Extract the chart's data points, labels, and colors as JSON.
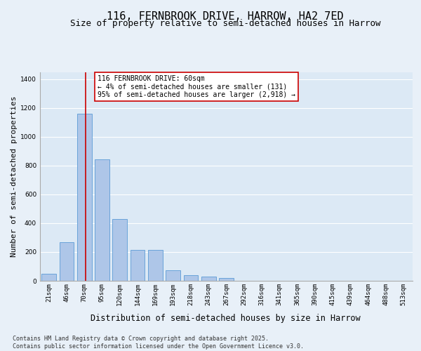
{
  "title": "116, FERNBROOK DRIVE, HARROW, HA2 7ED",
  "subtitle": "Size of property relative to semi-detached houses in Harrow",
  "xlabel": "Distribution of semi-detached houses by size in Harrow",
  "ylabel": "Number of semi-detached properties",
  "footer_line1": "Contains HM Land Registry data © Crown copyright and database right 2025.",
  "footer_line2": "Contains public sector information licensed under the Open Government Licence v3.0.",
  "annotation_title": "116 FERNBROOK DRIVE: 60sqm",
  "annotation_line1": "← 4% of semi-detached houses are smaller (131)",
  "annotation_line2": "95% of semi-detached houses are larger (2,918) →",
  "bar_labels": [
    "21sqm",
    "46sqm",
    "70sqm",
    "95sqm",
    "120sqm",
    "144sqm",
    "169sqm",
    "193sqm",
    "218sqm",
    "243sqm",
    "267sqm",
    "292sqm",
    "316sqm",
    "341sqm",
    "365sqm",
    "390sqm",
    "415sqm",
    "439sqm",
    "464sqm",
    "488sqm",
    "513sqm"
  ],
  "bar_values": [
    50,
    270,
    1160,
    845,
    430,
    215,
    215,
    75,
    40,
    30,
    20,
    0,
    0,
    0,
    0,
    0,
    0,
    0,
    0,
    0,
    0
  ],
  "bar_color": "#aec6e8",
  "bar_edgecolor": "#5b9bd5",
  "vline_color": "#cc0000",
  "annotation_box_edgecolor": "#cc0000",
  "annotation_box_facecolor": "#ffffff",
  "bg_color": "#e8f0f8",
  "plot_bg_color": "#dce9f5",
  "ylim": [
    0,
    1450
  ],
  "yticks": [
    0,
    200,
    400,
    600,
    800,
    1000,
    1200,
    1400
  ],
  "grid_color": "#ffffff",
  "title_fontsize": 11,
  "subtitle_fontsize": 9,
  "xlabel_fontsize": 8.5,
  "ylabel_fontsize": 8,
  "tick_fontsize": 6.5,
  "footer_fontsize": 6,
  "annotation_fontsize": 7
}
